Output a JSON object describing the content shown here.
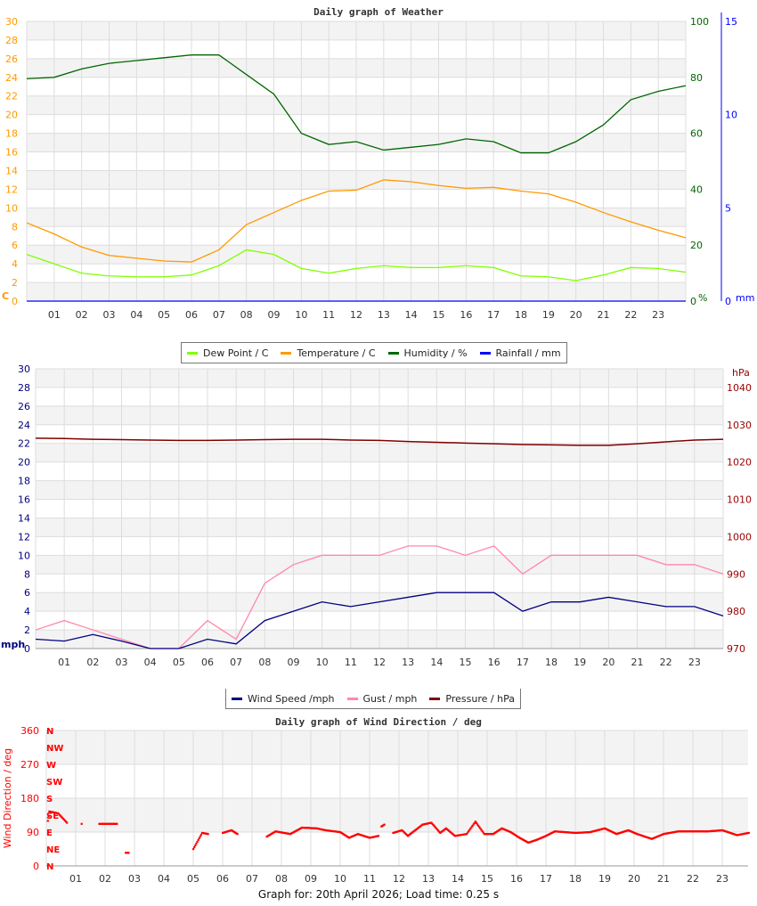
{
  "chart_data": [
    {
      "type": "line",
      "title": "Daily graph of Weather",
      "x_ticks": [
        "01",
        "02",
        "03",
        "04",
        "05",
        "06",
        "07",
        "08",
        "09",
        "10",
        "11",
        "12",
        "13",
        "14",
        "15",
        "16",
        "17",
        "18",
        "19",
        "20",
        "21",
        "22",
        "23"
      ],
      "x_hours": [
        0,
        1,
        2,
        3,
        4,
        5,
        6,
        7,
        8,
        9,
        10,
        11,
        12,
        13,
        14,
        15,
        16,
        17,
        18,
        19,
        20,
        21,
        22,
        23,
        24
      ],
      "axes": {
        "left": {
          "unit": "C",
          "range": [
            0,
            30
          ],
          "ticks": [
            0,
            2,
            4,
            6,
            8,
            10,
            12,
            14,
            16,
            18,
            20,
            22,
            24,
            26,
            28,
            30
          ],
          "color": "#ff9900"
        },
        "right1": {
          "unit": "%",
          "range": [
            0,
            100
          ],
          "ticks": [
            0,
            20,
            40,
            60,
            80,
            100
          ],
          "color": "#006600"
        },
        "right2": {
          "unit": "mm",
          "range": [
            0,
            15
          ],
          "ticks": [
            0,
            5,
            10,
            15
          ],
          "color": "#0000ff"
        }
      },
      "grid": true,
      "legend_placement": "bottom",
      "series": [
        {
          "name": "Dew Point / C",
          "axis": "left",
          "color": "#80ff00",
          "values": [
            5.0,
            4.0,
            3.0,
            2.7,
            2.6,
            2.6,
            2.8,
            3.8,
            5.5,
            5.0,
            3.5,
            3.0,
            3.5,
            3.8,
            3.6,
            3.6,
            3.8,
            3.6,
            2.7,
            2.6,
            2.2,
            2.8,
            3.6,
            3.5,
            3.1
          ]
        },
        {
          "name": "Temperature / C",
          "axis": "left",
          "color": "#ff9900",
          "values": [
            8.4,
            7.2,
            5.8,
            4.9,
            4.6,
            4.3,
            4.2,
            5.5,
            8.2,
            9.5,
            10.8,
            11.8,
            11.9,
            13.0,
            12.8,
            12.4,
            12.1,
            12.2,
            11.8,
            11.5,
            10.6,
            9.5,
            8.5,
            7.6,
            6.8
          ]
        },
        {
          "name": "Humidity / %",
          "axis": "right1",
          "color": "#006600",
          "values": [
            79.5,
            80,
            83,
            85,
            86,
            87,
            88,
            88,
            81,
            74,
            60,
            56,
            57,
            54,
            55,
            56,
            58,
            57,
            53,
            53,
            57,
            63,
            72,
            75,
            77
          ]
        },
        {
          "name": "Rainfall / mm",
          "axis": "right2",
          "color": "#0000ff",
          "values": [
            0,
            0,
            0,
            0,
            0,
            0,
            0,
            0,
            0,
            0,
            0,
            0,
            0,
            0,
            0,
            0,
            0,
            0,
            0,
            0,
            0,
            0,
            0,
            0,
            0
          ]
        }
      ]
    },
    {
      "type": "line",
      "x_ticks": [
        "01",
        "02",
        "03",
        "04",
        "05",
        "06",
        "07",
        "08",
        "09",
        "10",
        "11",
        "12",
        "13",
        "14",
        "15",
        "16",
        "17",
        "18",
        "19",
        "20",
        "21",
        "22",
        "23"
      ],
      "x_hours": [
        0,
        1,
        2,
        3,
        4,
        5,
        6,
        7,
        8,
        9,
        10,
        11,
        12,
        13,
        14,
        15,
        16,
        17,
        18,
        19,
        20,
        21,
        22,
        23,
        24
      ],
      "axes": {
        "left": {
          "unit": "mph",
          "range": [
            0,
            30
          ],
          "ticks": [
            0,
            2,
            4,
            6,
            8,
            10,
            12,
            14,
            16,
            18,
            20,
            22,
            24,
            26,
            28,
            30
          ],
          "color": "#000080"
        },
        "right": {
          "unit": "hPa",
          "range": [
            970,
            1045
          ],
          "ticks": [
            970,
            980,
            990,
            1000,
            1010,
            1020,
            1030,
            1040
          ],
          "color": "#990000"
        }
      },
      "grid": true,
      "legend_placement": "bottom",
      "series": [
        {
          "name": "Gust / mph",
          "axis": "left",
          "color": "#ff88aa",
          "values": [
            2,
            3,
            2,
            1,
            0,
            0,
            3,
            1,
            7,
            9,
            10,
            10,
            10,
            11,
            11,
            10,
            11,
            8,
            10,
            10,
            10,
            10,
            9,
            9,
            8
          ]
        },
        {
          "name": "Wind Speed /mph",
          "axis": "left",
          "color": "#000080",
          "values": [
            1,
            0.8,
            1.5,
            0.8,
            0,
            0,
            1,
            0.5,
            3,
            4,
            5,
            4.5,
            5,
            5.5,
            6,
            6,
            6,
            4,
            5,
            5,
            5.5,
            5,
            4.5,
            4.5,
            3.5
          ]
        },
        {
          "name": "Pressure / hPa",
          "axis": "right",
          "color": "#800000",
          "values": [
            1026.4,
            1026.3,
            1026.1,
            1026.0,
            1025.9,
            1025.8,
            1025.8,
            1025.9,
            1026.0,
            1026.1,
            1026.1,
            1025.9,
            1025.8,
            1025.5,
            1025.3,
            1025.1,
            1024.9,
            1024.7,
            1024.6,
            1024.5,
            1024.5,
            1024.9,
            1025.4,
            1025.9,
            1026.1
          ]
        }
      ]
    },
    {
      "type": "scatter",
      "title": "Daily graph of Wind Direction / deg",
      "ylabel": "Wind Direction / deg",
      "x_ticks": [
        "01",
        "02",
        "03",
        "04",
        "05",
        "06",
        "07",
        "08",
        "09",
        "10",
        "11",
        "12",
        "13",
        "14",
        "15",
        "16",
        "17",
        "18",
        "19",
        "20",
        "21",
        "22",
        "23"
      ],
      "ylim": [
        0,
        360
      ],
      "y_ticks": [
        0,
        90,
        180,
        270,
        360
      ],
      "compass": [
        "N",
        "NE",
        "E",
        "SE",
        "S",
        "SW",
        "W",
        "NW",
        "N"
      ],
      "color": "#ff0000",
      "grid": true,
      "segments": [
        [
          [
            0.05,
            120
          ],
          [
            0.1,
            145
          ],
          [
            0.4,
            140
          ],
          [
            0.7,
            115
          ]
        ],
        [
          [
            1.2,
            112
          ]
        ],
        [
          [
            1.8,
            112
          ],
          [
            2.4,
            112
          ]
        ],
        [
          [
            2.7,
            35
          ],
          [
            2.8,
            35
          ]
        ],
        [
          [
            5.0,
            45
          ],
          [
            5.3,
            88
          ],
          [
            5.5,
            85
          ]
        ],
        [
          [
            6.0,
            88
          ],
          [
            6.3,
            95
          ],
          [
            6.5,
            85
          ]
        ],
        [
          [
            7.5,
            78
          ],
          [
            7.8,
            92
          ],
          [
            8.3,
            85
          ],
          [
            8.7,
            102
          ],
          [
            9.2,
            100
          ],
          [
            9.5,
            95
          ],
          [
            10.0,
            90
          ],
          [
            10.3,
            75
          ],
          [
            10.6,
            85
          ],
          [
            11.0,
            75
          ],
          [
            11.3,
            80
          ]
        ],
        [
          [
            11.4,
            105
          ],
          [
            11.5,
            110
          ]
        ],
        [
          [
            11.8,
            88
          ],
          [
            12.1,
            95
          ],
          [
            12.3,
            80
          ],
          [
            12.8,
            110
          ],
          [
            13.1,
            115
          ],
          [
            13.4,
            88
          ],
          [
            13.6,
            100
          ],
          [
            13.9,
            80
          ],
          [
            14.3,
            85
          ],
          [
            14.6,
            118
          ],
          [
            14.9,
            85
          ],
          [
            15.2,
            85
          ],
          [
            15.5,
            100
          ],
          [
            15.8,
            90
          ],
          [
            16.1,
            75
          ],
          [
            16.4,
            62
          ],
          [
            16.7,
            70
          ],
          [
            17.0,
            80
          ],
          [
            17.3,
            92
          ],
          [
            18.0,
            88
          ],
          [
            18.5,
            90
          ],
          [
            19.0,
            100
          ],
          [
            19.4,
            85
          ],
          [
            19.8,
            95
          ],
          [
            20.1,
            85
          ],
          [
            20.6,
            72
          ],
          [
            21.0,
            85
          ],
          [
            21.5,
            92
          ],
          [
            22.0,
            92
          ],
          [
            22.5,
            92
          ],
          [
            23.0,
            95
          ],
          [
            23.5,
            82
          ],
          [
            23.9,
            88
          ]
        ]
      ]
    }
  ],
  "legend1": [
    {
      "label": "Dew Point / C",
      "color": "#80ff00"
    },
    {
      "label": "Temperature / C",
      "color": "#ff9900"
    },
    {
      "label": "Humidity / %",
      "color": "#006600"
    },
    {
      "label": "Rainfall / mm",
      "color": "#0000ff"
    }
  ],
  "legend2": [
    {
      "label": "Wind Speed /mph",
      "color": "#000080"
    },
    {
      "label": "Gust / mph",
      "color": "#ff88aa"
    },
    {
      "label": "Pressure / hPa",
      "color": "#800000"
    }
  ],
  "footer": "Graph for: 20th April 2026; Load time: 0.25 s"
}
